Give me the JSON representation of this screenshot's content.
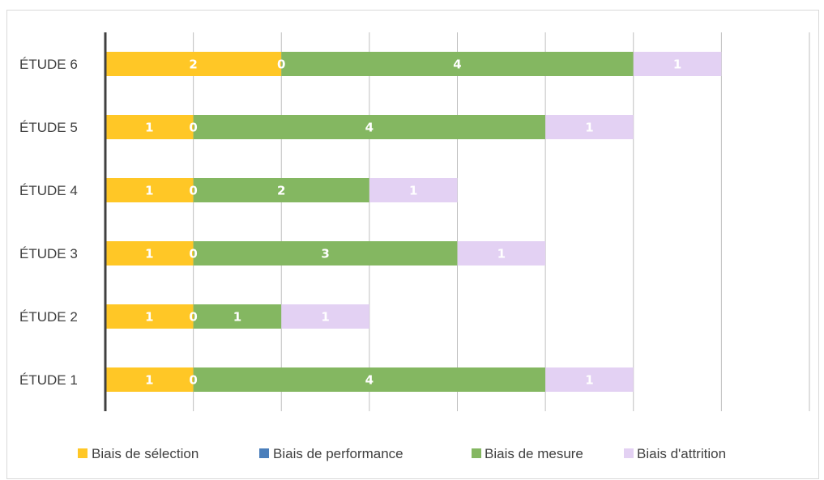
{
  "chart_data": {
    "type": "bar",
    "orientation": "horizontal",
    "stacked": true,
    "categories": [
      "ÉTUDE 1",
      "ÉTUDE 2",
      "ÉTUDE 3",
      "ÉTUDE 4",
      "ÉTUDE 5",
      "ÉTUDE 6"
    ],
    "series": [
      {
        "name": "Biais de sélection",
        "color": "#FFC726",
        "values": [
          1,
          1,
          1,
          1,
          1,
          2
        ]
      },
      {
        "name": "Biais de performance",
        "color": "#4A7EBB",
        "values": [
          0,
          0,
          0,
          0,
          0,
          0
        ]
      },
      {
        "name": "Biais de mesure",
        "color": "#84B761",
        "values": [
          4,
          1,
          3,
          2,
          4,
          4
        ]
      },
      {
        "name": "Biais d'attrition",
        "color": "#E3D1F3",
        "values": [
          1,
          1,
          1,
          1,
          1,
          1
        ]
      }
    ],
    "title": "",
    "xlabel": "",
    "ylabel": "",
    "xlim": [
      0,
      8
    ],
    "xticks": [
      0,
      1,
      2,
      3,
      4,
      5,
      6,
      7,
      8
    ],
    "grid": true,
    "legend": "bottom"
  }
}
